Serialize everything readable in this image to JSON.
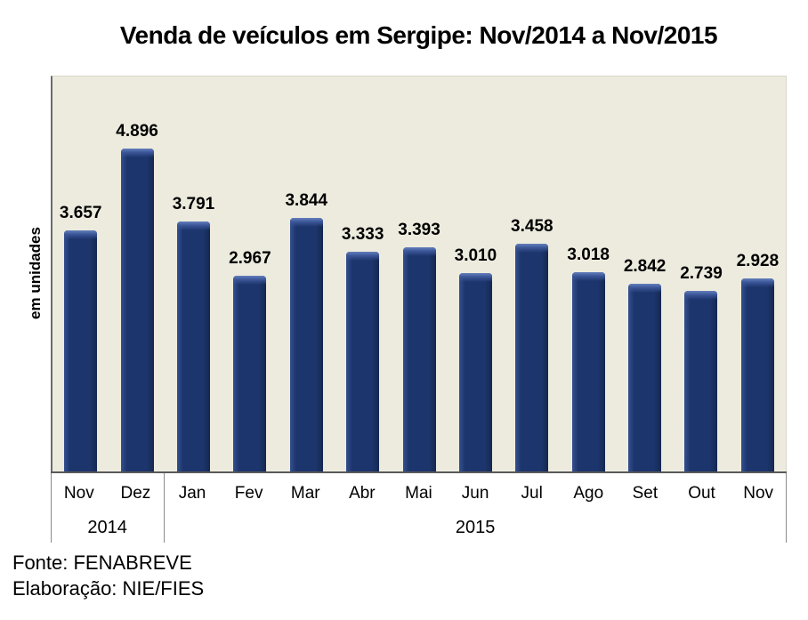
{
  "chart_data": {
    "type": "bar",
    "title": "Venda de veículos em Sergipe: Nov/2014 a Nov/2015",
    "xlabel": "",
    "ylabel": "em unidades",
    "categories": [
      "Nov",
      "Dez",
      "Jan",
      "Fev",
      "Mar",
      "Abr",
      "Mai",
      "Jun",
      "Jul",
      "Ago",
      "Set",
      "Out",
      "Nov"
    ],
    "values": [
      3657,
      4896,
      3791,
      2967,
      3844,
      3333,
      3393,
      3010,
      3458,
      3018,
      2842,
      2739,
      2928
    ],
    "data_labels": [
      "3.657",
      "4.896",
      "3.791",
      "2.967",
      "3.844",
      "3.333",
      "3.393",
      "3.010",
      "3.458",
      "3.018",
      "2.842",
      "2.739",
      "2.928"
    ],
    "year_groups": [
      {
        "label": "2014",
        "span": 2
      },
      {
        "label": "2015",
        "span": 11
      }
    ],
    "ylim": [
      0,
      6000
    ],
    "grid": false,
    "legend": "none",
    "bar_color": "#1d356d",
    "bar_highlight_color": "#647fbc",
    "plot_background": "#edebde",
    "axis_line_color": "#595959"
  },
  "footer": {
    "source": "Fonte: FENABREVE",
    "elaboration": "Elaboração: NIE/FIES"
  }
}
